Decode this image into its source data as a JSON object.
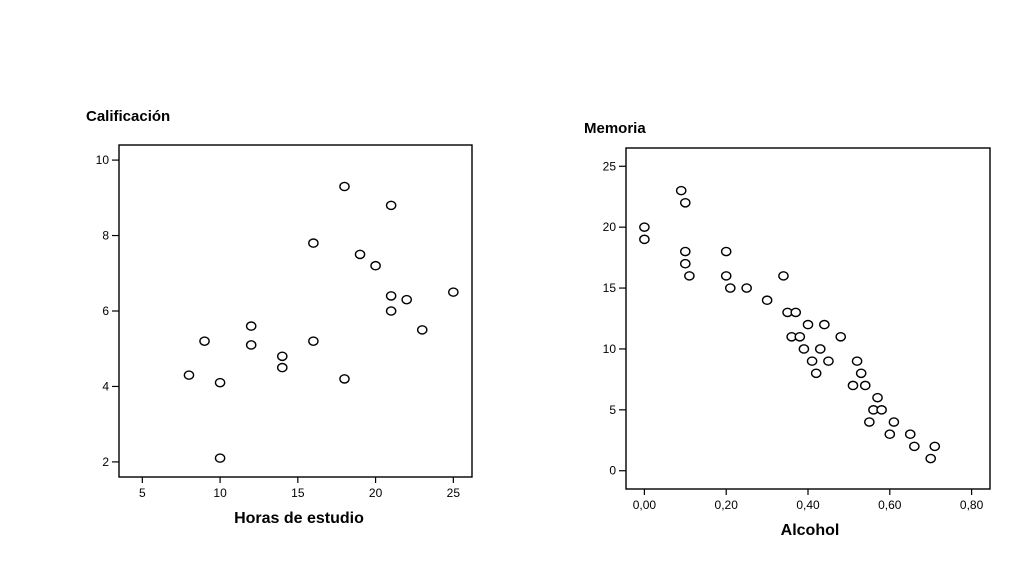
{
  "chart_data": [
    {
      "type": "scatter",
      "title": "",
      "ylabel": "Calificación",
      "xlabel": "Horas de estudio",
      "xlim": [
        3.5,
        26.2
      ],
      "ylim": [
        1.6,
        10.4
      ],
      "xticks": [
        5,
        10,
        15,
        20,
        25
      ],
      "yticks": [
        2,
        4,
        6,
        8,
        10
      ],
      "grid": false,
      "x": [
        8,
        9,
        10,
        10,
        12,
        12,
        14,
        14,
        16,
        16,
        18,
        18,
        19,
        20,
        21,
        21,
        21,
        22,
        23,
        25
      ],
      "y": [
        4.3,
        5.2,
        4.1,
        2.1,
        5.6,
        5.1,
        4.8,
        4.5,
        7.8,
        5.2,
        9.3,
        4.2,
        7.5,
        7.2,
        8.8,
        6.4,
        6.0,
        6.3,
        5.5,
        6.5
      ]
    },
    {
      "type": "scatter",
      "title": "",
      "ylabel": "Memoria",
      "xlabel": "Alcohol",
      "xlim": [
        -0.045,
        0.845
      ],
      "ylim": [
        -1.5,
        26.5
      ],
      "xticks": [
        "0,00",
        "0,20",
        "0,40",
        "0,60",
        "0,80"
      ],
      "xtick_values": [
        0,
        0.2,
        0.4,
        0.6,
        0.8
      ],
      "yticks": [
        "0",
        "5",
        "10",
        "15",
        "20",
        "25"
      ],
      "ytick_values": [
        0,
        5,
        10,
        15,
        20,
        25
      ],
      "grid": false,
      "x": [
        0.0,
        0.0,
        0.09,
        0.1,
        0.1,
        0.1,
        0.11,
        0.2,
        0.2,
        0.21,
        0.25,
        0.3,
        0.34,
        0.35,
        0.36,
        0.37,
        0.38,
        0.39,
        0.4,
        0.41,
        0.42,
        0.43,
        0.44,
        0.45,
        0.48,
        0.51,
        0.52,
        0.53,
        0.54,
        0.55,
        0.56,
        0.57,
        0.58,
        0.6,
        0.61,
        0.65,
        0.66,
        0.7,
        0.71
      ],
      "y": [
        20,
        19,
        23,
        22,
        18,
        17,
        16,
        18,
        16,
        15,
        15,
        14,
        16,
        13,
        11,
        13,
        11,
        10,
        12,
        9,
        8,
        10,
        12,
        9,
        11,
        7,
        9,
        8,
        7,
        4,
        5,
        6,
        5,
        3,
        4,
        3,
        2,
        1,
        2
      ]
    }
  ]
}
